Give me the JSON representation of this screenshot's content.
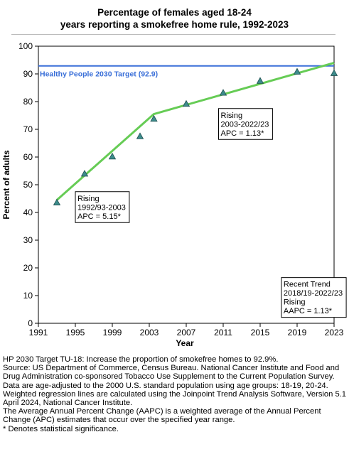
{
  "chart_data": {
    "type": "line",
    "title": "Percentage of females aged 18-24 years reporting a smokefree home rule, 1992-2023",
    "title_lines": [
      "Percentage of females aged 18-24",
      "years reporting a smokefree home rule, 1992-2023"
    ],
    "xlabel": "Year",
    "ylabel": "Percent of adults",
    "xlim": [
      1991,
      2023
    ],
    "ylim": [
      0,
      100
    ],
    "x_ticks": [
      1991,
      1995,
      1999,
      2003,
      2007,
      2011,
      2015,
      2019,
      2023
    ],
    "y_ticks": [
      0,
      10,
      20,
      30,
      40,
      50,
      60,
      70,
      80,
      90,
      100
    ],
    "grid": false,
    "observed": {
      "marker": "triangle",
      "color": "#3d8c8c",
      "points": [
        {
          "x": 1993,
          "y": 43.6
        },
        {
          "x": 1996,
          "y": 54.0
        },
        {
          "x": 1999,
          "y": 60.2
        },
        {
          "x": 2002,
          "y": 67.5
        },
        {
          "x": 2003.5,
          "y": 73.8
        },
        {
          "x": 2007,
          "y": 79.2
        },
        {
          "x": 2011,
          "y": 83.2
        },
        {
          "x": 2015,
          "y": 87.5
        },
        {
          "x": 2019,
          "y": 90.8
        },
        {
          "x": 2023,
          "y": 90.3
        }
      ]
    },
    "trend": {
      "color": "#66cc55",
      "points": [
        {
          "x": 1993,
          "y": 44.5
        },
        {
          "x": 2003.5,
          "y": 75.5
        },
        {
          "x": 2023,
          "y": 94.0
        }
      ]
    },
    "target": {
      "value": 92.9,
      "label": "Healthy People 2030 Target (92.9)",
      "color": "#3a6fd8"
    },
    "annotations": [
      {
        "lines": [
          "Rising",
          "1992/93-2003",
          "APC =  5.15*"
        ],
        "anchor_x": 1995.0,
        "anchor_y": 47.5
      },
      {
        "lines": [
          "Rising",
          "2003-2022/23",
          "APC =  1.13*"
        ],
        "anchor_x": 2010.5,
        "anchor_y": 77.5
      },
      {
        "lines": [
          "Recent Trend",
          "2018/19-2022/23",
          "Rising",
          "AAPC =  1.13*"
        ],
        "anchor_x": 2017.3,
        "anchor_y": 16.5
      }
    ]
  },
  "footnotes": [
    "HP 2030 Target TU-18: Increase the proportion of smokefree homes to 92.9%.",
    "Source: US Department of Commerce, Census Bureau. National Cancer Institute and Food and Drug Administration co-sponsored Tobacco Use Supplement to the Current Population Survey.",
    "Data are age-adjusted to the 2000 U.S. standard population using age groups: 18-19, 20-24.",
    "Weighted regression lines are calculated using the Joinpoint Trend Analysis Software, Version 5.1 April 2024, National Cancer Institute.",
    "The Average Annual Percent Change (AAPC) is a weighted average of the Annual Percent Change (APC) estimates that occur over the specified year range.",
    "* Denotes statistical significance."
  ]
}
